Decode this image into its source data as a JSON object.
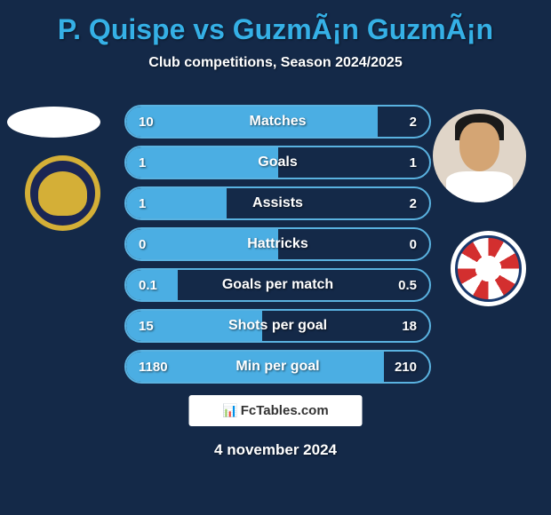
{
  "background_color": "#142948",
  "title": {
    "text": "P. Quispe vs GuzmÃ¡n GuzmÃ¡n",
    "color": "#35b0e6",
    "fontsize": 32,
    "fontweight": 800
  },
  "subtitle": {
    "text": "Club competitions, Season 2024/2025",
    "color": "#ffffff",
    "fontsize": 16
  },
  "stats": {
    "fill_color": "#4baee3",
    "border_color": "#5ab2e0",
    "text_color": "#ffffff",
    "label_color": "#ffffff",
    "rows": [
      {
        "label": "Matches",
        "left": "10",
        "right": "2",
        "fill_pct": 83
      },
      {
        "label": "Goals",
        "left": "1",
        "right": "1",
        "fill_pct": 50
      },
      {
        "label": "Assists",
        "left": "1",
        "right": "2",
        "fill_pct": 33
      },
      {
        "label": "Hattricks",
        "left": "0",
        "right": "0",
        "fill_pct": 50
      },
      {
        "label": "Goals per match",
        "left": "0.1",
        "right": "0.5",
        "fill_pct": 17
      },
      {
        "label": "Shots per goal",
        "left": "15",
        "right": "18",
        "fill_pct": 45
      },
      {
        "label": "Min per goal",
        "left": "1180",
        "right": "210",
        "fill_pct": 85
      }
    ]
  },
  "watermark": {
    "text": "FcTables.com",
    "background": "#ffffff",
    "color": "#333333"
  },
  "date": {
    "text": "4 november 2024",
    "color": "#ffffff",
    "fontsize": 17
  }
}
